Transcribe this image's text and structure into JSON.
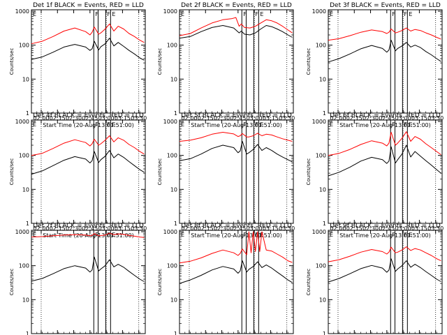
{
  "colors": {
    "events": "#000000",
    "lld": "#ff0000",
    "background": "#ffffff"
  },
  "shared": {
    "xlabel": "Start Time (20-Aug-13 01:51:00)",
    "ylabel": "Counts/sec",
    "x_ticks": [
      "02:00",
      "02:15",
      "02:30",
      "02:45",
      "03:00",
      "03:15",
      "03:30"
    ],
    "x_tick_minutes": [
      9,
      24,
      39,
      54,
      69,
      84,
      99
    ],
    "xlim_minutes": [
      0,
      105
    ],
    "y_ticks": [
      "1",
      "10",
      "100",
      "1000"
    ],
    "y_tick_values": [
      1,
      10,
      100,
      1000
    ],
    "ylim": [
      1,
      1100
    ],
    "y_scale": "log",
    "dotted_vlines_minutes": [
      9,
      69,
      99
    ],
    "solid_vlines_minutes": [
      57.5,
      61.5,
      68.5,
      73
    ],
    "flag_glyphs": [
      "F",
      "F",
      "E"
    ]
  },
  "chart_data": [
    {
      "type": "line",
      "title": "Det 1f BLACK = Events, RED = LLD",
      "series": [
        {
          "key": "events",
          "x": [
            0,
            10,
            20,
            30,
            40,
            50,
            54,
            56,
            58,
            62,
            64,
            68,
            72,
            76,
            80,
            85,
            90,
            95,
            100,
            104
          ],
          "values": [
            38,
            45,
            62,
            88,
            105,
            88,
            70,
            78,
            130,
            72,
            90,
            110,
            160,
            95,
            120,
            92,
            70,
            55,
            42,
            36
          ]
        },
        {
          "key": "lld",
          "x": [
            0,
            10,
            20,
            30,
            40,
            50,
            54,
            56,
            58,
            62,
            64,
            68,
            72,
            76,
            80,
            85,
            90,
            95,
            100,
            104
          ],
          "values": [
            110,
            130,
            180,
            260,
            320,
            250,
            200,
            240,
            340,
            210,
            230,
            300,
            420,
            260,
            360,
            300,
            220,
            180,
            140,
            120
          ]
        }
      ]
    },
    {
      "type": "line",
      "title": "Det 2f BLACK = Events, RED = LLD",
      "series": [
        {
          "key": "events",
          "x": [
            0,
            10,
            20,
            30,
            40,
            50,
            55,
            57,
            60,
            65,
            70,
            75,
            80,
            85,
            90,
            95,
            100,
            104
          ],
          "values": [
            160,
            180,
            250,
            330,
            380,
            320,
            230,
            260,
            210,
            200,
            230,
            300,
            380,
            350,
            300,
            250,
            200,
            170
          ]
        },
        {
          "key": "lld",
          "x": [
            0,
            10,
            20,
            30,
            40,
            48,
            52,
            55,
            57,
            60,
            65,
            70,
            75,
            80,
            85,
            90,
            95,
            100,
            104
          ],
          "values": [
            190,
            220,
            320,
            450,
            560,
            600,
            650,
            360,
            420,
            330,
            320,
            360,
            450,
            560,
            520,
            450,
            360,
            280,
            230
          ]
        }
      ]
    },
    {
      "type": "line",
      "title": "Det 3f BLACK = Events, RED = LLD",
      "series": [
        {
          "key": "events",
          "x": [
            0,
            10,
            20,
            30,
            40,
            50,
            54,
            56,
            58,
            62,
            64,
            68,
            72,
            76,
            80,
            85,
            90,
            95,
            100,
            104
          ],
          "values": [
            32,
            40,
            55,
            78,
            98,
            80,
            62,
            72,
            140,
            68,
            80,
            95,
            120,
            88,
            100,
            85,
            65,
            52,
            40,
            33
          ]
        },
        {
          "key": "lld",
          "x": [
            0,
            10,
            20,
            30,
            40,
            50,
            54,
            56,
            58,
            62,
            64,
            68,
            72,
            76,
            80,
            85,
            90,
            95,
            100,
            104
          ],
          "values": [
            140,
            155,
            190,
            240,
            280,
            250,
            220,
            240,
            300,
            230,
            240,
            270,
            320,
            260,
            290,
            270,
            230,
            200,
            170,
            150
          ]
        }
      ]
    },
    {
      "type": "line",
      "title": "Det 4f BLACK = Events, RED = LLD",
      "series": [
        {
          "key": "events",
          "x": [
            0,
            10,
            20,
            30,
            40,
            50,
            54,
            56,
            58,
            62,
            64,
            68,
            72,
            76,
            80,
            85,
            90,
            95,
            100,
            104
          ],
          "values": [
            28,
            35,
            50,
            72,
            92,
            78,
            60,
            70,
            130,
            62,
            75,
            95,
            140,
            85,
            110,
            88,
            66,
            50,
            38,
            32
          ]
        },
        {
          "key": "lld",
          "x": [
            0,
            10,
            20,
            30,
            40,
            50,
            54,
            56,
            58,
            62,
            64,
            68,
            72,
            76,
            80,
            85,
            90,
            95,
            100,
            104
          ],
          "values": [
            100,
            115,
            160,
            230,
            290,
            240,
            190,
            220,
            300,
            200,
            220,
            280,
            380,
            250,
            330,
            280,
            210,
            170,
            130,
            110
          ]
        }
      ]
    },
    {
      "type": "line",
      "title": "Det 5f BLACK = Events, RED = LLD",
      "series": [
        {
          "key": "events",
          "x": [
            0,
            10,
            20,
            30,
            40,
            50,
            54,
            56,
            58,
            62,
            64,
            68,
            72,
            76,
            80,
            85,
            90,
            95,
            100,
            104
          ],
          "values": [
            70,
            80,
            110,
            160,
            200,
            170,
            120,
            135,
            260,
            110,
            120,
            150,
            210,
            140,
            170,
            140,
            110,
            90,
            75,
            65
          ]
        },
        {
          "key": "lld",
          "x": [
            0,
            10,
            20,
            30,
            40,
            50,
            54,
            56,
            58,
            62,
            64,
            68,
            72,
            76,
            80,
            85,
            90,
            95,
            100,
            104
          ],
          "values": [
            260,
            280,
            330,
            420,
            480,
            430,
            360,
            380,
            440,
            350,
            350,
            380,
            450,
            380,
            420,
            400,
            350,
            310,
            280,
            260
          ]
        }
      ]
    },
    {
      "type": "line",
      "title": "Det 6f BLACK = Events, RED = LLD",
      "series": [
        {
          "key": "events",
          "x": [
            0,
            10,
            20,
            30,
            40,
            50,
            54,
            56,
            58,
            62,
            64,
            68,
            72,
            76,
            80,
            85,
            90,
            95,
            100,
            104
          ],
          "values": [
            25,
            32,
            45,
            68,
            88,
            75,
            58,
            68,
            180,
            60,
            75,
            110,
            200,
            90,
            130,
            95,
            70,
            52,
            38,
            30
          ]
        },
        {
          "key": "lld",
          "x": [
            0,
            10,
            20,
            30,
            40,
            50,
            54,
            56,
            58,
            62,
            64,
            68,
            72,
            76,
            80,
            85,
            90,
            95,
            100,
            104
          ],
          "values": [
            100,
            115,
            150,
            210,
            270,
            230,
            190,
            230,
            480,
            200,
            230,
            320,
            500,
            260,
            360,
            300,
            220,
            170,
            130,
            105
          ]
        }
      ]
    },
    {
      "type": "line",
      "title": "Det 7f BLACK = Events, RED = LLD",
      "series": [
        {
          "key": "events",
          "x": [
            0,
            10,
            20,
            30,
            40,
            50,
            54,
            56,
            58,
            62,
            64,
            68,
            72,
            76,
            80,
            85,
            90,
            95,
            100,
            104
          ],
          "values": [
            35,
            42,
            58,
            82,
            100,
            85,
            65,
            75,
            180,
            70,
            80,
            100,
            150,
            92,
            110,
            90,
            68,
            52,
            40,
            34
          ]
        },
        {
          "key": "lld",
          "x": [
            0,
            10,
            20,
            30,
            40,
            50,
            54,
            56,
            58,
            62,
            64,
            68,
            72,
            76,
            80,
            85,
            90,
            95,
            100,
            104
          ],
          "values": [
            700,
            720,
            760,
            800,
            820,
            800,
            760,
            780,
            880,
            760,
            770,
            800,
            900,
            820,
            860,
            840,
            780,
            740,
            700,
            680
          ]
        }
      ]
    },
    {
      "type": "line",
      "title": "Det 8f BLACK = Events, RED = LLD",
      "series": [
        {
          "key": "events",
          "x": [
            0,
            10,
            20,
            30,
            40,
            50,
            54,
            56,
            58,
            62,
            64,
            68,
            72,
            76,
            80,
            85,
            90,
            95,
            100,
            104
          ],
          "values": [
            30,
            38,
            52,
            75,
            95,
            80,
            60,
            70,
            140,
            65,
            78,
            95,
            130,
            88,
            105,
            85,
            65,
            50,
            38,
            32
          ]
        },
        {
          "key": "lld",
          "x": [
            0,
            10,
            20,
            30,
            40,
            50,
            54,
            56,
            58,
            62,
            64,
            66,
            68,
            70,
            72,
            74,
            76,
            80,
            85,
            90,
            95,
            100,
            104
          ],
          "values": [
            120,
            135,
            170,
            230,
            290,
            240,
            200,
            230,
            310,
            210,
            1000,
            240,
            1000,
            260,
            1000,
            260,
            1000,
            290,
            270,
            220,
            180,
            140,
            125
          ]
        }
      ]
    },
    {
      "type": "line",
      "title": "Det 9f BLACK = Events, RED = LLD",
      "series": [
        {
          "key": "events",
          "x": [
            0,
            10,
            20,
            30,
            40,
            50,
            54,
            56,
            58,
            62,
            64,
            68,
            72,
            76,
            80,
            85,
            90,
            95,
            100,
            104
          ],
          "values": [
            33,
            42,
            58,
            82,
            102,
            85,
            64,
            74,
            160,
            68,
            80,
            100,
            140,
            90,
            110,
            88,
            67,
            52,
            40,
            34
          ]
        },
        {
          "key": "lld",
          "x": [
            0,
            10,
            20,
            30,
            40,
            50,
            54,
            56,
            58,
            62,
            64,
            68,
            72,
            76,
            80,
            85,
            90,
            95,
            100,
            104
          ],
          "values": [
            130,
            150,
            190,
            250,
            300,
            260,
            220,
            250,
            350,
            240,
            250,
            290,
            360,
            280,
            320,
            290,
            240,
            200,
            160,
            140
          ]
        }
      ]
    }
  ]
}
